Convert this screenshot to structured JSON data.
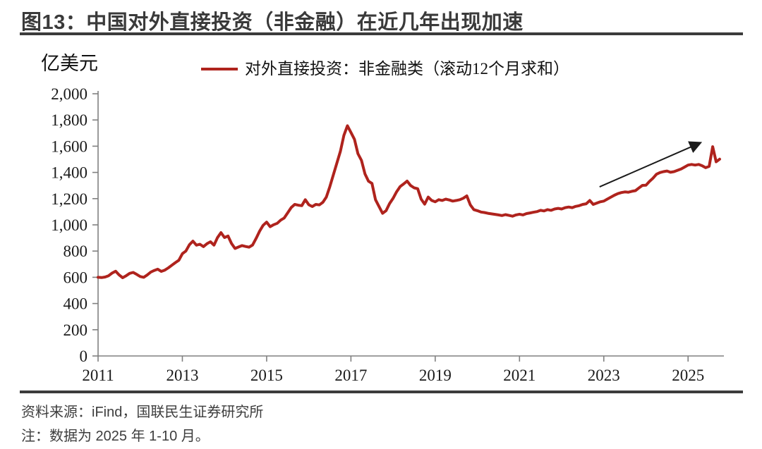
{
  "header": {
    "title": "图13：中国对外直接投资（非金融）在近几年出现加速"
  },
  "chart_data": {
    "type": "line",
    "unit_label": "亿美元",
    "legend_position": "top",
    "grid": false,
    "xlim": [
      2011.0,
      2025.85
    ],
    "ylim": [
      0,
      2000
    ],
    "y_ticks": [
      {
        "v": 0,
        "label": "0"
      },
      {
        "v": 200,
        "label": "200"
      },
      {
        "v": 400,
        "label": "400"
      },
      {
        "v": 600,
        "label": "600"
      },
      {
        "v": 800,
        "label": "800"
      },
      {
        "v": 1000,
        "label": "1,000"
      },
      {
        "v": 1200,
        "label": "1,200"
      },
      {
        "v": 1400,
        "label": "1,400"
      },
      {
        "v": 1600,
        "label": "1,600"
      },
      {
        "v": 1800,
        "label": "1,800"
      },
      {
        "v": 2000,
        "label": "2,000"
      }
    ],
    "x_ticks": [
      {
        "v": 2011,
        "label": "2011"
      },
      {
        "v": 2013,
        "label": "2013"
      },
      {
        "v": 2015,
        "label": "2015"
      },
      {
        "v": 2017,
        "label": "2017"
      },
      {
        "v": 2019,
        "label": "2019"
      },
      {
        "v": 2021,
        "label": "2021"
      },
      {
        "v": 2023,
        "label": "2023"
      },
      {
        "v": 2025,
        "label": "2025"
      }
    ],
    "series": [
      {
        "name": "对外直接投资：非金融类（滚动12个月求和）",
        "color": "#af231d",
        "frequency": "monthly",
        "start": "2011-01",
        "end": "2025-10",
        "values": [
          600,
          598,
          602,
          612,
          632,
          646,
          618,
          597,
          612,
          630,
          637,
          622,
          606,
          600,
          618,
          640,
          652,
          662,
          645,
          655,
          672,
          692,
          712,
          730,
          780,
          800,
          848,
          876,
          845,
          852,
          834,
          856,
          871,
          845,
          902,
          941,
          903,
          915,
          858,
          820,
          831,
          842,
          835,
          830,
          846,
          897,
          952,
          996,
          1021,
          986,
          1001,
          1012,
          1036,
          1052,
          1092,
          1132,
          1156,
          1150,
          1146,
          1192,
          1153,
          1140,
          1156,
          1152,
          1172,
          1212,
          1292,
          1382,
          1472,
          1562,
          1682,
          1756,
          1705,
          1652,
          1543,
          1492,
          1388,
          1333,
          1316,
          1192,
          1140,
          1088,
          1108,
          1162,
          1202,
          1252,
          1292,
          1312,
          1334,
          1300,
          1282,
          1276,
          1196,
          1158,
          1212,
          1186,
          1176,
          1192,
          1186,
          1196,
          1190,
          1181,
          1186,
          1192,
          1203,
          1221,
          1152,
          1116,
          1108,
          1098,
          1094,
          1088,
          1084,
          1080,
          1076,
          1071,
          1078,
          1072,
          1066,
          1076,
          1081,
          1076,
          1086,
          1091,
          1096,
          1101,
          1111,
          1106,
          1116,
          1111,
          1121,
          1126,
          1121,
          1131,
          1136,
          1131,
          1141,
          1146,
          1156,
          1161,
          1186,
          1156,
          1166,
          1176,
          1181,
          1196,
          1211,
          1226,
          1238,
          1246,
          1251,
          1249,
          1256,
          1261,
          1281,
          1301,
          1302,
          1331,
          1356,
          1386,
          1399,
          1406,
          1411,
          1401,
          1406,
          1416,
          1426,
          1441,
          1456,
          1461,
          1456,
          1461,
          1451,
          1436,
          1446,
          1596,
          1481,
          1501
        ]
      }
    ],
    "annotation_arrow": {
      "from": {
        "x": 2022.9,
        "y": 1290
      },
      "to": {
        "x": 2025.25,
        "y": 1620
      },
      "color": "#1a1a1a"
    }
  },
  "footer": {
    "source": "资料来源：iFind，国联民生证券研究所",
    "note": "注：数据为 2025 年 1-10 月。"
  },
  "colors": {
    "line": "#af231d",
    "axis": "#808080",
    "tick_label": "#1a1a1a",
    "rule": "#3c3c3c"
  }
}
